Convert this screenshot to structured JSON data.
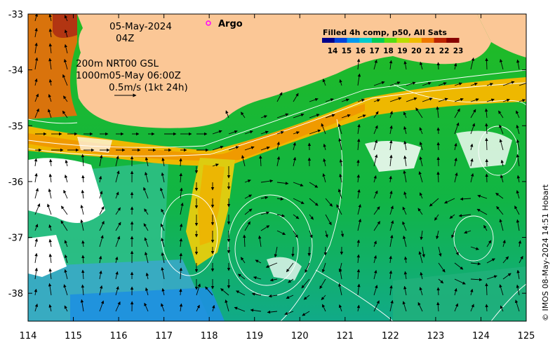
{
  "map": {
    "date": "05-May-2024",
    "hour": "04Z",
    "argo_label": "Argo",
    "depth_line": "200m  NRT00 GSL",
    "contour_line": "1000m05-May 06:00Z",
    "scale_line": "0.5m/s (1kt 24h)",
    "credit": "© IMOS 08-May-2024 14:51 Hobart",
    "lon_ticks": [
      "114",
      "115",
      "116",
      "117",
      "118",
      "119",
      "120",
      "121",
      "122",
      "123",
      "124",
      "125"
    ],
    "lat_ticks": [
      "-33",
      "-34",
      "-35",
      "-36",
      "-37",
      "-38"
    ],
    "lon_range": [
      114,
      125
    ],
    "lat_range": [
      -38.5,
      -33
    ],
    "colors": {
      "land": "#fbc796",
      "contour": "#ffffff",
      "arrow": "#000000",
      "argo": "#ff00ff"
    }
  },
  "legend": {
    "title": "Filled 4h comp, p50, All Sats",
    "ticks": [
      "14",
      "15",
      "16",
      "17",
      "18",
      "19",
      "20",
      "21",
      "22",
      "23"
    ],
    "colors": [
      "#00008b",
      "#0044dd",
      "#0099ee",
      "#00cccc",
      "#00cc55",
      "#55dd11",
      "#bbdd00",
      "#eebb00",
      "#ee7700",
      "#bb2200",
      "#880000"
    ]
  }
}
